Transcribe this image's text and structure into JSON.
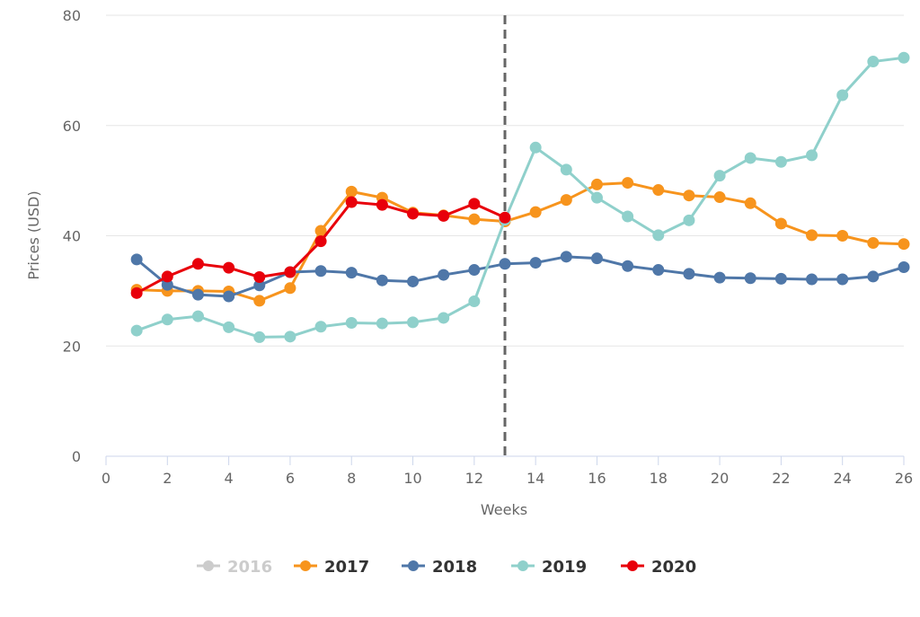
{
  "chart_data": {
    "type": "line",
    "title": "",
    "xlabel": "Weeks",
    "ylabel": "Prices (USD)",
    "xlim": [
      0,
      26
    ],
    "ylim": [
      0,
      80
    ],
    "x_ticks": [
      "0",
      "2",
      "4",
      "6",
      "8",
      "10",
      "12",
      "14",
      "16",
      "18",
      "20",
      "22",
      "24",
      "26"
    ],
    "y_ticks": [
      "0",
      "20",
      "40",
      "60",
      "80"
    ],
    "grid": "horizontal",
    "legend_position": "bottom-center",
    "marker_line": {
      "x": 13,
      "style": "dashed",
      "color": "#666666"
    },
    "series": [
      {
        "name": "2016",
        "color": "#cccccc",
        "visible": false,
        "x": [],
        "values": []
      },
      {
        "name": "2017",
        "color": "#f7941d",
        "visible": true,
        "x": [
          1,
          2,
          3,
          4,
          5,
          6,
          7,
          8,
          9,
          10,
          11,
          12,
          13,
          14,
          15,
          16,
          17,
          18,
          19,
          20,
          21,
          22,
          23,
          24,
          25,
          26
        ],
        "values": [
          30.2,
          30.0,
          30.0,
          29.9,
          28.2,
          30.5,
          40.9,
          48.0,
          46.9,
          44.2,
          43.7,
          43.0,
          42.6,
          44.3,
          46.5,
          49.3,
          49.6,
          48.3,
          47.3,
          47.0,
          45.9,
          42.2,
          40.1,
          40.0,
          38.7,
          38.5
        ]
      },
      {
        "name": "2018",
        "color": "#4f77a8",
        "visible": true,
        "x": [
          1,
          2,
          3,
          4,
          5,
          6,
          7,
          8,
          9,
          10,
          11,
          12,
          13,
          14,
          15,
          16,
          17,
          18,
          19,
          20,
          21,
          22,
          23,
          24,
          25,
          26
        ],
        "values": [
          35.7,
          31.1,
          29.3,
          29.0,
          31.0,
          33.4,
          33.6,
          33.3,
          31.9,
          31.7,
          32.9,
          33.8,
          34.9,
          35.1,
          36.2,
          35.9,
          34.5,
          33.8,
          33.1,
          32.4,
          32.3,
          32.2,
          32.1,
          32.1,
          32.6,
          34.3
        ]
      },
      {
        "name": "2019",
        "color": "#8fd0cb",
        "visible": true,
        "x": [
          1,
          2,
          3,
          4,
          5,
          6,
          7,
          8,
          9,
          10,
          11,
          12,
          13,
          14,
          15,
          16,
          17,
          18,
          19,
          20,
          21,
          22,
          23,
          24,
          25,
          26
        ],
        "values": [
          22.8,
          24.8,
          25.4,
          23.4,
          21.6,
          21.7,
          23.5,
          24.2,
          24.1,
          24.3,
          25.1,
          28.1,
          42.9,
          56.0,
          52.0,
          46.9,
          43.5,
          40.1,
          42.8,
          50.9,
          54.1,
          53.4,
          54.6,
          65.5,
          71.6,
          72.3
        ]
      },
      {
        "name": "2020",
        "color": "#e8000b",
        "visible": true,
        "x": [
          1,
          2,
          3,
          4,
          5,
          6,
          7,
          8,
          9,
          10,
          11,
          12,
          13
        ],
        "values": [
          29.6,
          32.6,
          34.9,
          34.2,
          32.5,
          33.4,
          39.0,
          46.1,
          45.6,
          44.0,
          43.6,
          45.8,
          43.3
        ]
      }
    ]
  }
}
